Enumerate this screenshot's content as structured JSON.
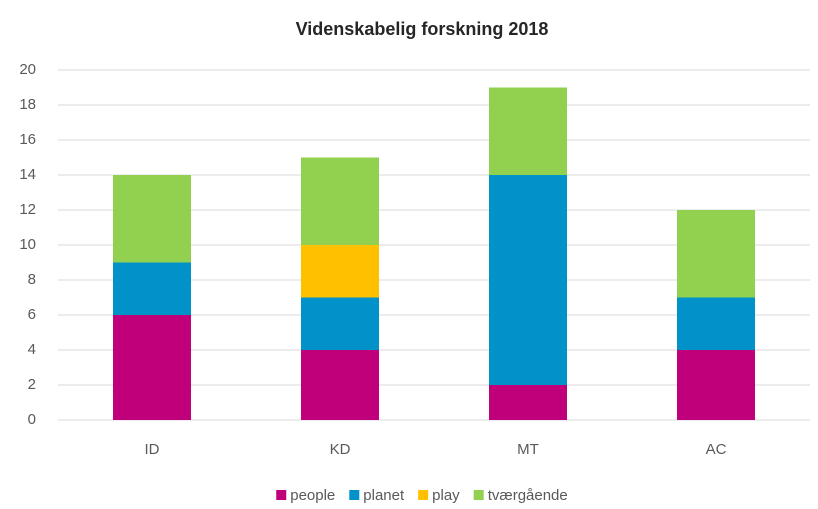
{
  "chart_data": {
    "type": "stacked_bar",
    "title": "Videnskabelig forskning 2018",
    "categories": [
      "ID",
      "KD",
      "MT",
      "AC"
    ],
    "series": [
      {
        "name": "people",
        "color": "#c0007a",
        "values": [
          6,
          4,
          2,
          4
        ]
      },
      {
        "name": "planet",
        "color": "#0092c8",
        "values": [
          3,
          3,
          12,
          3
        ]
      },
      {
        "name": "play",
        "color": "#ffc000",
        "values": [
          0,
          3,
          0,
          0
        ]
      },
      {
        "name": "tværgående",
        "color": "#92d050",
        "values": [
          5,
          5,
          5,
          5
        ]
      }
    ],
    "ylim": [
      0,
      20
    ],
    "yticks": [
      0,
      2,
      4,
      6,
      8,
      10,
      12,
      14,
      16,
      18,
      20
    ],
    "grid": true,
    "legend": "bottom"
  }
}
